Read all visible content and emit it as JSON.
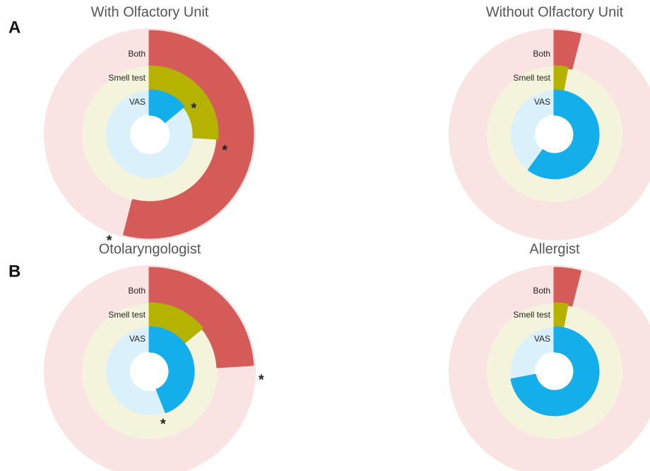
{
  "panel_labels": [
    "A",
    "B"
  ],
  "chart_data": [
    {
      "type": "radial_bar",
      "title": "With Olfactory Unit",
      "vlim": [
        0,
        100
      ],
      "series": [
        {
          "name": "Both",
          "color": "#d45b58",
          "track": "#f9e3e3",
          "value": 54,
          "annotation": "*"
        },
        {
          "name": "Smell test",
          "color": "#b5b200",
          "track": "#f4f4dc",
          "value": 26,
          "annotation": "*"
        },
        {
          "name": "VAS",
          "color": "#14aeea",
          "track": "#daf1fb",
          "value": 14,
          "annotation": "*"
        }
      ]
    },
    {
      "type": "radial_bar",
      "title": "Without Olfactory Unit",
      "vlim": [
        0,
        100
      ],
      "series": [
        {
          "name": "Both",
          "color": "#d45b58",
          "track": "#f9e3e3",
          "value": 4
        },
        {
          "name": "Smell test",
          "color": "#b5b200",
          "track": "#f4f4dc",
          "value": 3
        },
        {
          "name": "VAS",
          "color": "#14aeea",
          "track": "#daf1fb",
          "value": 60
        }
      ]
    },
    {
      "type": "radial_bar",
      "title": "Otolaryngologist",
      "vlim": [
        0,
        100
      ],
      "series": [
        {
          "name": "Both",
          "color": "#d45b58",
          "track": "#f9e3e3",
          "value": 24,
          "annotation": "*"
        },
        {
          "name": "Smell test",
          "color": "#b5b200",
          "track": "#f4f4dc",
          "value": 14
        },
        {
          "name": "VAS",
          "color": "#14aeea",
          "track": "#daf1fb",
          "value": 44,
          "annotation": "*"
        }
      ]
    },
    {
      "type": "radial_bar",
      "title": "Allergist",
      "vlim": [
        0,
        100
      ],
      "series": [
        {
          "name": "Both",
          "color": "#d45b58",
          "track": "#f9e3e3",
          "value": 4
        },
        {
          "name": "Smell test",
          "color": "#b5b200",
          "track": "#f4f4dc",
          "value": 3
        },
        {
          "name": "VAS",
          "color": "#14aeea",
          "track": "#daf1fb",
          "value": 72
        }
      ]
    }
  ]
}
